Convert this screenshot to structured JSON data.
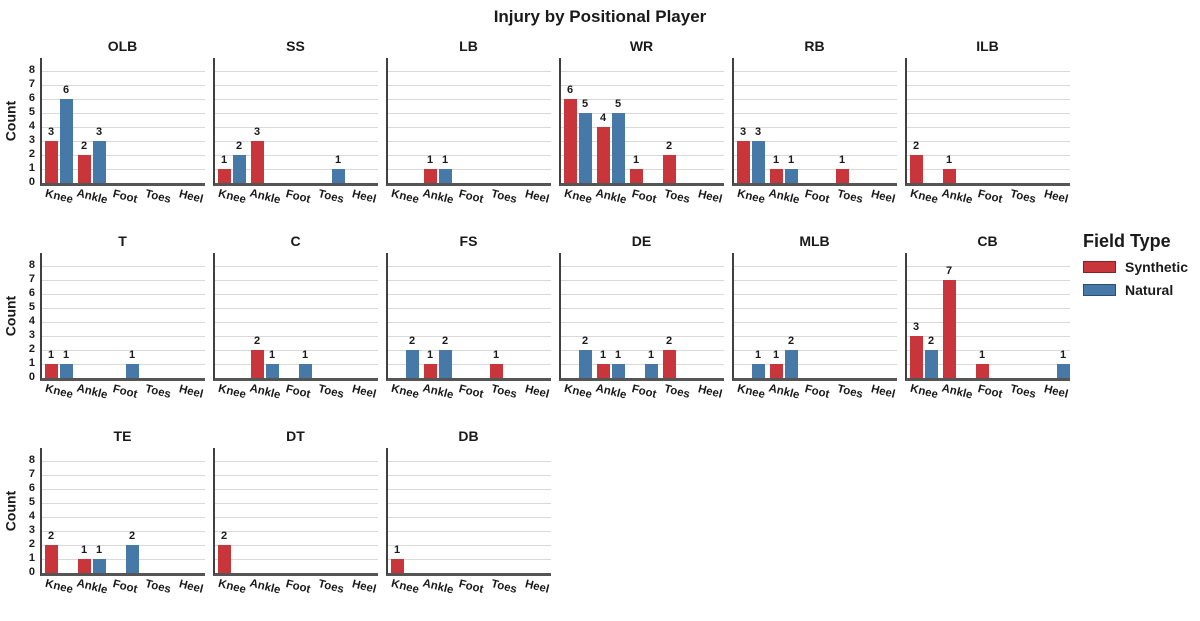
{
  "title": "Injury by Positional Player",
  "y_axis": {
    "label": "Count"
  },
  "legend": {
    "title": "Field Type",
    "items": [
      {
        "label": "Synthetic",
        "color": "#c8353a"
      },
      {
        "label": "Natural",
        "color": "#4678a8"
      }
    ]
  },
  "colors": {
    "synthetic": "#c8353a",
    "natural": "#4678a8",
    "gridline": "#d9d9d9",
    "axis": "#404040",
    "text": "#1a1a1a"
  },
  "chart_data": {
    "type": "bar",
    "title": "Injury by Positional Player",
    "ylabel": "Count",
    "xlabel": "",
    "ylim": [
      0,
      8.9
    ],
    "yticks": [
      0,
      1,
      2,
      3,
      4,
      5,
      6,
      7,
      8
    ],
    "grid": "horizontal",
    "legend_position": "right",
    "categories": [
      "Knee",
      "Ankle",
      "Foot",
      "Toes",
      "Heel"
    ],
    "series_names": [
      "Synthetic",
      "Natural"
    ],
    "facet_layout": {
      "rows": [
        6,
        6,
        3
      ],
      "facet_variable": "position"
    },
    "facets": [
      {
        "label": "OLB",
        "synthetic": [
          3,
          2,
          0,
          0,
          0
        ],
        "natural": [
          6,
          3,
          0,
          0,
          0
        ]
      },
      {
        "label": "SS",
        "synthetic": [
          1,
          3,
          0,
          0,
          0
        ],
        "natural": [
          2,
          0,
          0,
          1,
          0
        ]
      },
      {
        "label": "LB",
        "synthetic": [
          0,
          1,
          0,
          0,
          0
        ],
        "natural": [
          0,
          1,
          0,
          0,
          0
        ]
      },
      {
        "label": "WR",
        "synthetic": [
          6,
          4,
          1,
          2,
          0
        ],
        "natural": [
          5,
          5,
          0,
          0,
          0
        ]
      },
      {
        "label": "RB",
        "synthetic": [
          3,
          1,
          0,
          1,
          0
        ],
        "natural": [
          3,
          1,
          0,
          0,
          0
        ]
      },
      {
        "label": "ILB",
        "synthetic": [
          2,
          1,
          0,
          0,
          0
        ],
        "natural": [
          0,
          0,
          0,
          0,
          0
        ]
      },
      {
        "label": "T",
        "synthetic": [
          1,
          0,
          0,
          0,
          0
        ],
        "natural": [
          1,
          0,
          1,
          0,
          0
        ]
      },
      {
        "label": "C",
        "synthetic": [
          0,
          2,
          0,
          0,
          0
        ],
        "natural": [
          0,
          1,
          1,
          0,
          0
        ]
      },
      {
        "label": "FS",
        "synthetic": [
          0,
          1,
          0,
          1,
          0
        ],
        "natural": [
          2,
          2,
          0,
          0,
          0
        ]
      },
      {
        "label": "DE",
        "synthetic": [
          0,
          1,
          0,
          2,
          0
        ],
        "natural": [
          2,
          1,
          1,
          0,
          0
        ]
      },
      {
        "label": "MLB",
        "synthetic": [
          0,
          1,
          0,
          0,
          0
        ],
        "natural": [
          1,
          2,
          0,
          0,
          0
        ]
      },
      {
        "label": "CB",
        "synthetic": [
          3,
          7,
          1,
          0,
          0
        ],
        "natural": [
          2,
          0,
          0,
          0,
          1
        ]
      },
      {
        "label": "TE",
        "synthetic": [
          2,
          1,
          0,
          0,
          0
        ],
        "natural": [
          0,
          1,
          2,
          0,
          0
        ]
      },
      {
        "label": "DT",
        "synthetic": [
          2,
          0,
          0,
          0,
          0
        ],
        "natural": [
          0,
          0,
          0,
          0,
          0
        ]
      },
      {
        "label": "DB",
        "synthetic": [
          1,
          0,
          0,
          0,
          0
        ],
        "natural": [
          0,
          0,
          0,
          0,
          0
        ]
      }
    ]
  }
}
